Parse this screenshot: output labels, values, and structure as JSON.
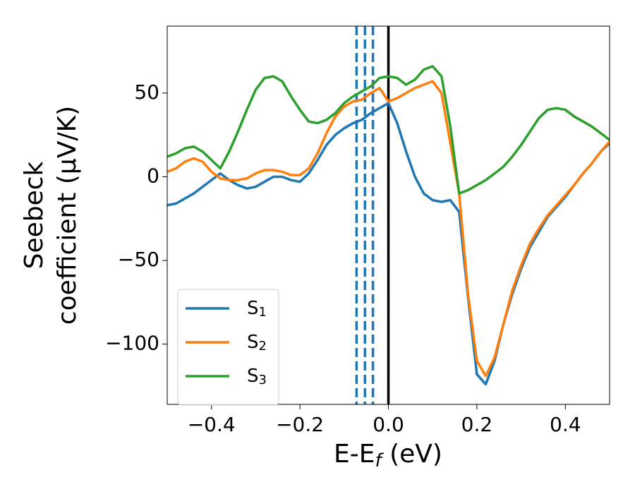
{
  "chart_data": {
    "type": "line",
    "xlabel": [
      "E-E",
      "f",
      " (eV)"
    ],
    "ylabel": [
      "Seebeck",
      "coefficient  (μV/K)"
    ],
    "x": [
      -0.5,
      -0.48,
      -0.46,
      -0.44,
      -0.42,
      -0.4,
      -0.38,
      -0.36,
      -0.34,
      -0.32,
      -0.3,
      -0.28,
      -0.26,
      -0.24,
      -0.22,
      -0.2,
      -0.18,
      -0.16,
      -0.14,
      -0.12,
      -0.1,
      -0.08,
      -0.06,
      -0.04,
      -0.02,
      0,
      0.02,
      0.04,
      0.06,
      0.08,
      0.1,
      0.12,
      0.14,
      0.16,
      0.18,
      0.2,
      0.22,
      0.24,
      0.26,
      0.28,
      0.3,
      0.32,
      0.34,
      0.36,
      0.38,
      0.4,
      0.42,
      0.44,
      0.46,
      0.48,
      0.5
    ],
    "series": [
      {
        "name": "S1",
        "color": "#1f77b4",
        "values": [
          -17,
          -16,
          -13,
          -10,
          -6,
          -2,
          2,
          -2,
          -5,
          -7,
          -6,
          -3,
          0,
          0,
          -2,
          -3,
          2,
          10,
          19,
          25,
          29,
          32,
          34,
          38,
          41,
          44,
          32,
          15,
          0,
          -10,
          -14,
          -15,
          -14,
          -21,
          -72,
          -118,
          -124,
          -110,
          -88,
          -70,
          -55,
          -42,
          -33,
          -24,
          -18,
          -12,
          -5,
          2,
          8,
          15,
          20
        ]
      },
      {
        "name": "S2",
        "color": "#ff7f0e",
        "values": [
          3,
          5,
          9,
          11,
          9,
          3,
          -1,
          -2,
          -2,
          -1,
          2,
          4,
          4,
          3,
          1,
          1,
          5,
          14,
          26,
          36,
          42,
          45,
          46,
          50,
          53,
          45,
          47,
          50,
          53,
          55,
          57,
          50,
          20,
          -10,
          -70,
          -110,
          -119,
          -108,
          -88,
          -68,
          -53,
          -40,
          -31,
          -23,
          -17,
          -11,
          -5,
          2,
          8,
          15,
          21
        ]
      },
      {
        "name": "S3",
        "color": "#2ca02c",
        "values": [
          12,
          14,
          17,
          18,
          15,
          10,
          5,
          15,
          27,
          40,
          52,
          59,
          60,
          57,
          48,
          40,
          33,
          32,
          34,
          38,
          44,
          48,
          51,
          54,
          59,
          60,
          59,
          55,
          58,
          64,
          66,
          60,
          30,
          -10,
          -8,
          -5,
          -2,
          2,
          6,
          12,
          19,
          27,
          35,
          40,
          41,
          40,
          36,
          33,
          30,
          26,
          22
        ]
      }
    ],
    "vlines": [
      {
        "x": -0.072,
        "color": "#1f77b4",
        "style": "dashed"
      },
      {
        "x": -0.053,
        "color": "#1f77b4",
        "style": "dashed"
      },
      {
        "x": -0.035,
        "color": "#1f77b4",
        "style": "dashed"
      },
      {
        "x": 0,
        "color": "#000000",
        "style": "solid"
      }
    ],
    "xlim": [
      -0.5,
      0.5
    ],
    "ylim": [
      -136,
      90
    ],
    "xticks": [
      {
        "value": -0.4,
        "label": "−0.4"
      },
      {
        "value": -0.2,
        "label": "−0.2"
      },
      {
        "value": 0,
        "label": "0.0"
      },
      0.2,
      0.4
    ],
    "yticks": [
      {
        "value": -100,
        "label": "−100"
      },
      {
        "value": -50,
        "label": "−50"
      },
      0,
      50
    ],
    "legend": "lower left",
    "grid": false
  }
}
